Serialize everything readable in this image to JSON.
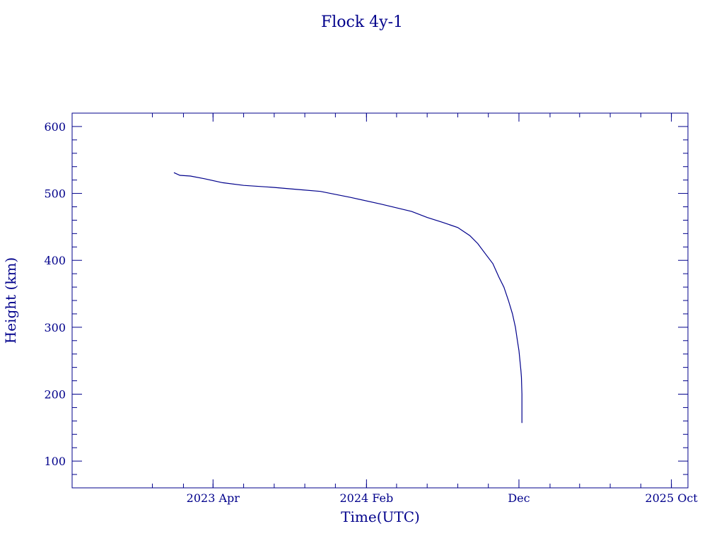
{
  "chart_data": {
    "type": "line",
    "title": "Flock 4y-1",
    "xlabel": "Time(UTC)",
    "ylabel": "Height (km)",
    "color": "#00008b",
    "ylim": [
      60,
      620
    ],
    "xlim": [
      "2022-06-24",
      "2025-11-03"
    ],
    "grid": false,
    "legend": "none",
    "y_ticks": [
      100,
      200,
      300,
      400,
      500,
      600
    ],
    "x_ticks": [
      {
        "date": "2023-04-01",
        "label": "2023 Apr"
      },
      {
        "date": "2024-02-01",
        "label": "2024 Feb"
      },
      {
        "date": "2024-12-01",
        "label": "Dec"
      },
      {
        "date": "2025-10-01",
        "label": "2025 Oct"
      }
    ],
    "series": [
      {
        "x": [
          "2023-01-13",
          "2023-01-25",
          "2023-02-15",
          "2023-03-15",
          "2023-04-20",
          "2023-06-01",
          "2023-08-01",
          "2023-09-15",
          "2023-11-01",
          "2024-01-01",
          "2024-03-01",
          "2024-05-01",
          "2024-06-01",
          "2024-07-01",
          "2024-08-01",
          "2024-08-25",
          "2024-09-10",
          "2024-09-25",
          "2024-10-10",
          "2024-10-22",
          "2024-11-01",
          "2024-11-10",
          "2024-11-18",
          "2024-11-24",
          "2024-11-28",
          "2024-12-01",
          "2024-12-03",
          "2024-12-05",
          "2024-12-06",
          "2024-12-07",
          "2024-12-07"
        ],
        "y": [
          531,
          527,
          526,
          522,
          516,
          512,
          509,
          506,
          503,
          494,
          484,
          473,
          464,
          457,
          449,
          437,
          425,
          410,
          395,
          375,
          360,
          340,
          320,
          300,
          280,
          265,
          250,
          235,
          225,
          200,
          157
        ]
      }
    ]
  }
}
